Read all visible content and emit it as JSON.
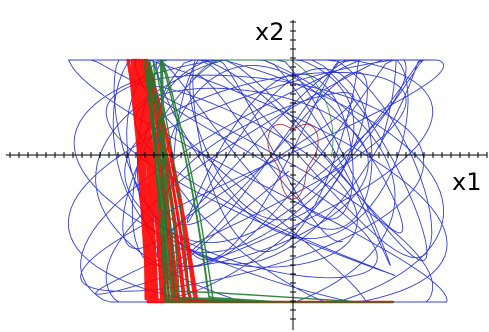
{
  "chart_data": {
    "type": "line",
    "title": "",
    "xlabel": "x1",
    "ylabel": "x2",
    "axes_style": "crossing-at-origin",
    "grid": false,
    "legend": "none",
    "xlim": [
      -2.5,
      1.5
    ],
    "ylim": [
      -1.25,
      1.0
    ],
    "series": [
      {
        "color": "#1f2bd6",
        "kind": "lissajous-wide",
        "samples": 1400,
        "params": {
          "ax": 1.9,
          "ay": 0.9,
          "fx": 3.0,
          "fy": 2.17,
          "phase": 0.4,
          "cx": -0.35,
          "cy": -0.15
        },
        "width": 0.9
      },
      {
        "color": "#1f2bd6",
        "kind": "lissajous-wide",
        "samples": 900,
        "params": {
          "ax": 1.6,
          "ay": 0.75,
          "fx": 2.0,
          "fy": 3.13,
          "phase": 1.1,
          "cx": -0.2,
          "cy": 0.05
        },
        "width": 0.9
      },
      {
        "color": "#b22222",
        "kind": "small-loop",
        "samples": 200,
        "params": {
          "r": 0.22,
          "cx": 0.0,
          "cy": 0.0
        },
        "width": 0.9
      },
      {
        "color": "#ff0000",
        "kind": "L-band",
        "samples": 1600,
        "params": {
          "corner_x": -1.45,
          "corner_y": -0.95,
          "right_x": 1.0,
          "top_y": 0.62
        },
        "width": 2.4
      },
      {
        "color": "#1f7a2b",
        "kind": "L-band",
        "samples": 700,
        "params": {
          "corner_x": -1.3,
          "corner_y": -0.9,
          "right_x": 1.0,
          "top_y": 0.62
        },
        "width": 1.4
      },
      {
        "color": "#2a8a3a",
        "kind": "curve-arc",
        "samples": 300,
        "params": {
          "cx": -0.4,
          "cy": 0.1,
          "r": 0.8
        },
        "width": 0.9
      }
    ]
  }
}
